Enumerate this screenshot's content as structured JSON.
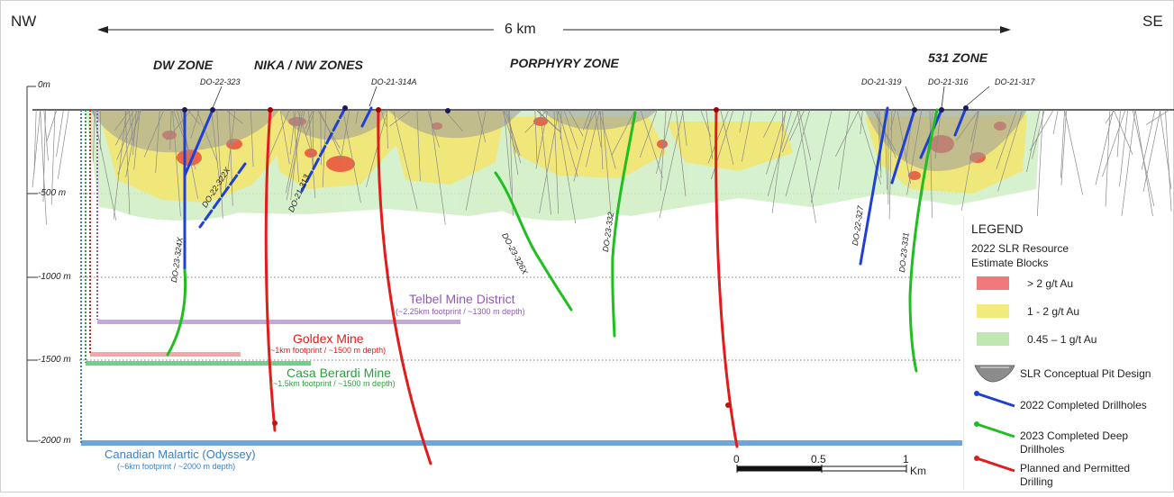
{
  "section": {
    "nw": "NW",
    "se": "SE",
    "span": "6 km",
    "zones": [
      "DW ZONE",
      "NIKA / NW ZONES",
      "PORPHYRY ZONE",
      "531 ZONE"
    ],
    "depths": [
      "0m",
      "-500 m",
      "-1000 m",
      "-1500 m",
      "-2000 m"
    ]
  },
  "drillholes": {
    "top": [
      "DO-22-323",
      "DO-21-314A",
      "DO-21-319",
      "DO-21-316",
      "DO-21-317"
    ],
    "along": [
      "DO-22-322X",
      "DO-21-313",
      "DO-23-324X",
      "DO-23-326X",
      "DO-23-332",
      "DO-22-327",
      "DO-23-331"
    ]
  },
  "mines": [
    {
      "name": "Telbel Mine District",
      "detail": "(~2.25km footprint / ~1300 m depth)",
      "color": "#8e5bb0"
    },
    {
      "name": "Goldex Mine",
      "detail": "(~1km footprint / ~1500 m depth)",
      "color": "#e8262a"
    },
    {
      "name": "Casa Berardi Mine",
      "detail": "(~1.5km footprint / ~1500 m depth)",
      "color": "#2e9c3f"
    },
    {
      "name": "Canadian Malartic (Odyssey)",
      "detail": "(~6km footprint / ~2000 m depth)",
      "color": "#3b7fc4"
    }
  ],
  "scale": {
    "ticks": [
      "0",
      "0.5",
      "1"
    ],
    "unit": "Km"
  },
  "legend": {
    "title": "LEGEND",
    "subtitle_1": "2022 SLR Resource",
    "subtitle_2": "Estimate Blocks",
    "grades": [
      {
        "label": "> 2 g/t Au",
        "color": "#f07a7a"
      },
      {
        "label": "1 - 2 g/t Au",
        "color": "#f3ea7e"
      },
      {
        "label": "0.45 – 1 g/t Au",
        "color": "#bfe7b0"
      }
    ],
    "pit": "SLR Conceptual Pit Design",
    "completed_2022": "2022 Completed Drillholes",
    "completed_2023_1": "2023 Completed Deep",
    "completed_2023_2": "Drillholes",
    "planned_1": "Planned and Permitted",
    "planned_2": "Drilling",
    "colors": {
      "blue": "#1f3fd6",
      "green": "#1fbf1f",
      "red": "#e21b1b"
    }
  }
}
